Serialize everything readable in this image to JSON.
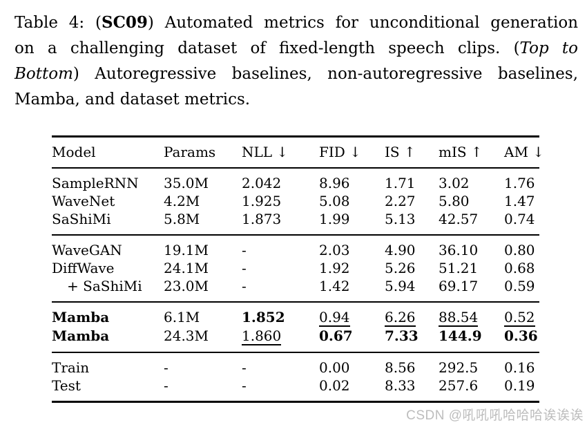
{
  "caption": {
    "lines": [
      {
        "pre": "Table 4: (",
        "strong": "SC09",
        "post": ") Automated metrics for unconditional generation"
      },
      {
        "pre": "on a challenging dataset of fixed-length speech clips. (",
        "em": "Top to"
      },
      {
        "em": "Bottom",
        "post": ") Autoregressive baselines, non-autoregressive baselines,"
      },
      {
        "post": "Mamba, and dataset metrics."
      }
    ]
  },
  "table": {
    "header": [
      "Model",
      "Params",
      "NLL ↓",
      "FID ↓",
      "IS ↑",
      "mIS ↑",
      "AM ↓"
    ],
    "sections": [
      {
        "name": "autoregressive-baselines",
        "rows": [
          {
            "cells": [
              {
                "t": "SampleRNN"
              },
              {
                "t": "35.0M"
              },
              {
                "t": "2.042"
              },
              {
                "t": "8.96"
              },
              {
                "t": "1.71"
              },
              {
                "t": "3.02"
              },
              {
                "t": "1.76"
              }
            ]
          },
          {
            "cells": [
              {
                "t": "WaveNet"
              },
              {
                "t": "4.2M"
              },
              {
                "t": "1.925"
              },
              {
                "t": "5.08"
              },
              {
                "t": "2.27"
              },
              {
                "t": "5.80"
              },
              {
                "t": "1.47"
              }
            ]
          },
          {
            "cells": [
              {
                "t": "SaShiMi"
              },
              {
                "t": "5.8M"
              },
              {
                "t": "1.873"
              },
              {
                "t": "1.99"
              },
              {
                "t": "5.13"
              },
              {
                "t": "42.57"
              },
              {
                "t": "0.74"
              }
            ]
          }
        ]
      },
      {
        "name": "non-autoregressive-baselines",
        "rows": [
          {
            "cells": [
              {
                "t": "WaveGAN"
              },
              {
                "t": "19.1M"
              },
              {
                "t": "-"
              },
              {
                "t": "2.03"
              },
              {
                "t": "4.90"
              },
              {
                "t": "36.10"
              },
              {
                "t": "0.80"
              }
            ]
          },
          {
            "cells": [
              {
                "t": "DiffWave"
              },
              {
                "t": "24.1M"
              },
              {
                "t": "-"
              },
              {
                "t": "1.92"
              },
              {
                "t": "5.26"
              },
              {
                "t": "51.21"
              },
              {
                "t": "0.68"
              }
            ]
          },
          {
            "cells": [
              {
                "t": "+ SaShiMi",
                "indent": true
              },
              {
                "t": "23.0M"
              },
              {
                "t": "-"
              },
              {
                "t": "1.42"
              },
              {
                "t": "5.94"
              },
              {
                "t": "69.17"
              },
              {
                "t": "0.59"
              }
            ]
          }
        ]
      },
      {
        "name": "mamba",
        "rows": [
          {
            "cells": [
              {
                "t": "Mamba",
                "b": true
              },
              {
                "t": "6.1M"
              },
              {
                "t": "1.852",
                "b": true
              },
              {
                "t": "0.94",
                "u": true
              },
              {
                "t": "6.26",
                "u": true
              },
              {
                "t": "88.54",
                "u": true
              },
              {
                "t": "0.52",
                "u": true
              }
            ]
          },
          {
            "cells": [
              {
                "t": "Mamba",
                "b": true
              },
              {
                "t": "24.3M"
              },
              {
                "t": "1.860",
                "u": true
              },
              {
                "t": "0.67",
                "b": true
              },
              {
                "t": "7.33",
                "b": true
              },
              {
                "t": "144.9",
                "b": true
              },
              {
                "t": "0.36",
                "b": true
              }
            ]
          }
        ]
      },
      {
        "name": "dataset-metrics",
        "rows": [
          {
            "cells": [
              {
                "t": "Train"
              },
              {
                "t": "-"
              },
              {
                "t": "-"
              },
              {
                "t": "0.00"
              },
              {
                "t": "8.56"
              },
              {
                "t": "292.5"
              },
              {
                "t": "0.16"
              }
            ]
          },
          {
            "cells": [
              {
                "t": "Test"
              },
              {
                "t": "-"
              },
              {
                "t": "-"
              },
              {
                "t": "0.02"
              },
              {
                "t": "8.33"
              },
              {
                "t": "257.6"
              },
              {
                "t": "0.19"
              }
            ]
          }
        ]
      }
    ]
  },
  "watermark": {
    "text": "CSDN @吼吼吼哈哈哈诶诶诶"
  },
  "colors": {
    "text": "#000000",
    "background": "#ffffff",
    "watermark": "#bdbdbd"
  }
}
